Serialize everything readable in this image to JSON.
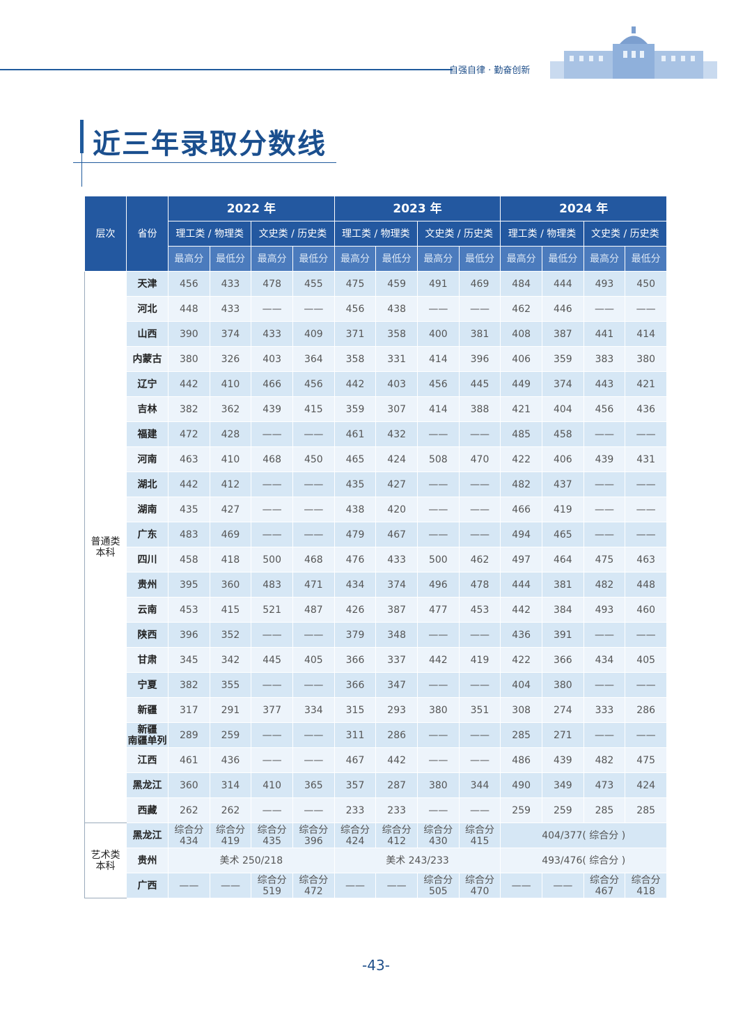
{
  "header": {
    "motto": "自强自律 · 勤奋创新"
  },
  "title": "近三年录取分数线",
  "table": {
    "level_header": "层次",
    "province_header": "省份",
    "years": [
      "2022 年",
      "2023 年",
      "2024 年"
    ],
    "tracks": [
      "理工类 / 物理类",
      "文史类 / 历史类",
      "理工类 / 物理类",
      "文史类 / 历史类",
      "理工类 / 物理类",
      "文史类 / 历史类"
    ],
    "score_headers": [
      "最高分",
      "最低分",
      "最高分",
      "最低分",
      "最高分",
      "最低分",
      "最高分",
      "最低分",
      "最高分",
      "最低分",
      "最高分",
      "最低分"
    ],
    "groups": [
      {
        "level": "普通类\n本科",
        "rows": [
          {
            "province": "天津",
            "cells": [
              [
                456,
                433,
                478,
                455
              ],
              [
                475,
                459,
                491,
                469
              ],
              [
                484,
                444,
                493,
                450
              ]
            ]
          },
          {
            "province": "河北",
            "cells": [
              [
                448,
                433,
                "——",
                "——"
              ],
              [
                456,
                438,
                "——",
                "——"
              ],
              [
                462,
                446,
                "——",
                "——"
              ]
            ]
          },
          {
            "province": "山西",
            "cells": [
              [
                390,
                374,
                433,
                409
              ],
              [
                371,
                358,
                400,
                381
              ],
              [
                408,
                387,
                441,
                414
              ]
            ]
          },
          {
            "province": "内蒙古",
            "cells": [
              [
                380,
                326,
                403,
                364
              ],
              [
                358,
                331,
                414,
                396
              ],
              [
                406,
                359,
                383,
                380
              ]
            ]
          },
          {
            "province": "辽宁",
            "cells": [
              [
                442,
                410,
                466,
                456
              ],
              [
                442,
                403,
                456,
                445
              ],
              [
                449,
                374,
                443,
                421
              ]
            ]
          },
          {
            "province": "吉林",
            "cells": [
              [
                382,
                362,
                439,
                415
              ],
              [
                359,
                307,
                414,
                388
              ],
              [
                421,
                404,
                456,
                436
              ]
            ]
          },
          {
            "province": "福建",
            "cells": [
              [
                472,
                428,
                "——",
                "——"
              ],
              [
                461,
                432,
                "——",
                "——"
              ],
              [
                485,
                458,
                "——",
                "——"
              ]
            ]
          },
          {
            "province": "河南",
            "cells": [
              [
                463,
                410,
                468,
                450
              ],
              [
                465,
                424,
                508,
                470
              ],
              [
                422,
                406,
                439,
                431
              ]
            ]
          },
          {
            "province": "湖北",
            "cells": [
              [
                442,
                412,
                "——",
                "——"
              ],
              [
                435,
                427,
                "——",
                "——"
              ],
              [
                482,
                437,
                "——",
                "——"
              ]
            ]
          },
          {
            "province": "湖南",
            "cells": [
              [
                435,
                427,
                "——",
                "——"
              ],
              [
                438,
                420,
                "——",
                "——"
              ],
              [
                466,
                419,
                "——",
                "——"
              ]
            ]
          },
          {
            "province": "广东",
            "cells": [
              [
                483,
                469,
                "——",
                "——"
              ],
              [
                479,
                467,
                "——",
                "——"
              ],
              [
                494,
                465,
                "——",
                "——"
              ]
            ]
          },
          {
            "province": "四川",
            "cells": [
              [
                458,
                418,
                500,
                468
              ],
              [
                476,
                433,
                500,
                462
              ],
              [
                497,
                464,
                475,
                463
              ]
            ]
          },
          {
            "province": "贵州",
            "cells": [
              [
                395,
                360,
                483,
                471
              ],
              [
                434,
                374,
                496,
                478
              ],
              [
                444,
                381,
                482,
                448
              ]
            ]
          },
          {
            "province": "云南",
            "cells": [
              [
                453,
                415,
                521,
                487
              ],
              [
                426,
                387,
                477,
                453
              ],
              [
                442,
                384,
                493,
                460
              ]
            ]
          },
          {
            "province": "陕西",
            "cells": [
              [
                396,
                352,
                "——",
                "——"
              ],
              [
                379,
                348,
                "——",
                "——"
              ],
              [
                436,
                391,
                "——",
                "——"
              ]
            ]
          },
          {
            "province": "甘肃",
            "cells": [
              [
                345,
                342,
                445,
                405
              ],
              [
                366,
                337,
                442,
                419
              ],
              [
                422,
                366,
                434,
                405
              ]
            ]
          },
          {
            "province": "宁夏",
            "cells": [
              [
                382,
                355,
                "——",
                "——"
              ],
              [
                366,
                347,
                "——",
                "——"
              ],
              [
                404,
                380,
                "——",
                "——"
              ]
            ]
          },
          {
            "province": "新疆",
            "cells": [
              [
                317,
                291,
                377,
                334
              ],
              [
                315,
                293,
                380,
                351
              ],
              [
                308,
                274,
                333,
                286
              ]
            ]
          },
          {
            "province": "新疆\n南疆单列",
            "cells": [
              [
                289,
                259,
                "——",
                "——"
              ],
              [
                311,
                286,
                "——",
                "——"
              ],
              [
                285,
                271,
                "——",
                "——"
              ]
            ]
          },
          {
            "province": "江西",
            "cells": [
              [
                461,
                436,
                "——",
                "——"
              ],
              [
                467,
                442,
                "——",
                "——"
              ],
              [
                486,
                439,
                482,
                475
              ]
            ]
          },
          {
            "province": "黑龙江",
            "cells": [
              [
                360,
                314,
                410,
                365
              ],
              [
                357,
                287,
                380,
                344
              ],
              [
                490,
                349,
                473,
                424
              ]
            ]
          },
          {
            "province": "西藏",
            "cells": [
              [
                262,
                262,
                "——",
                "——"
              ],
              [
                233,
                233,
                "——",
                "——"
              ],
              [
                259,
                259,
                285,
                285
              ]
            ]
          }
        ]
      },
      {
        "level": "艺术类\n本科",
        "rows": [
          {
            "province": "黑龙江",
            "cells": [
              [
                {
                  "label": "综合分",
                  "score": 434
                },
                {
                  "label": "综合分",
                  "score": 419
                },
                {
                  "label": "综合分",
                  "score": 435
                },
                {
                  "label": "综合分",
                  "score": 396
                }
              ],
              [
                {
                  "label": "综合分",
                  "score": 424
                },
                {
                  "label": "综合分",
                  "score": 412
                },
                {
                  "label": "综合分",
                  "score": 430
                },
                {
                  "label": "综合分",
                  "score": 415
                }
              ],
              "404/377( 综合分 )"
            ]
          },
          {
            "province": "贵州",
            "cells": [
              "美术 250/218",
              "美术 243/233",
              "493/476( 综合分 )"
            ]
          },
          {
            "province": "广西",
            "cells": [
              [
                "——",
                "——",
                {
                  "label": "综合分",
                  "score": 519
                },
                {
                  "label": "综合分",
                  "score": 472
                }
              ],
              [
                "——",
                "——",
                {
                  "label": "综合分",
                  "score": 505
                },
                {
                  "label": "综合分",
                  "score": 470
                }
              ],
              [
                "——",
                "——",
                {
                  "label": "综合分",
                  "score": 467
                },
                {
                  "label": "综合分",
                  "score": 418
                }
              ]
            ]
          }
        ]
      }
    ]
  },
  "page_number": "-43-"
}
